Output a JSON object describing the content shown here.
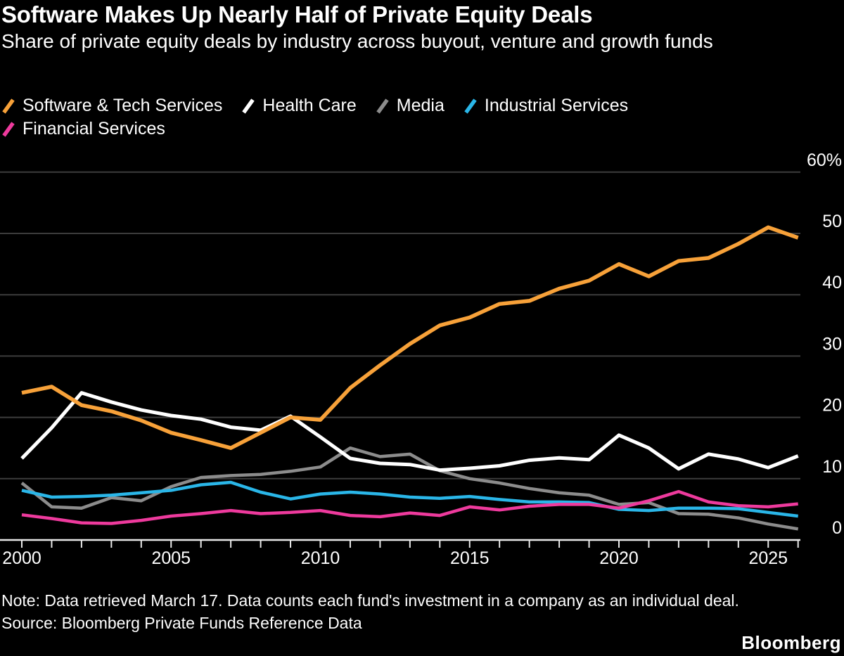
{
  "header": {
    "title": "Software Makes Up Nearly Half of Private Equity Deals",
    "subtitle": "Share of private equity deals by industry across buyout, venture and growth funds"
  },
  "colors": {
    "background": "#000000",
    "text": "#ffffff",
    "gridline": "#3c3c3c",
    "axis": "#e8e8e8",
    "software": "#f7a139",
    "health": "#ffffff",
    "media": "#8c8c8c",
    "industrial": "#2ab6e8",
    "financial": "#ee3a9d"
  },
  "chart_data": {
    "type": "line",
    "unit": "%",
    "x": [
      2000,
      2001,
      2002,
      2003,
      2004,
      2005,
      2006,
      2007,
      2008,
      2009,
      2010,
      2011,
      2012,
      2013,
      2014,
      2015,
      2016,
      2017,
      2018,
      2019,
      2020,
      2021,
      2022,
      2023,
      2024,
      2025,
      2026
    ],
    "series": [
      {
        "name": "Software & Tech Services",
        "color_key": "software",
        "values": [
          24,
          25,
          22,
          21,
          19.5,
          17.5,
          16.3,
          15,
          17.5,
          20,
          19.6,
          24.8,
          28.5,
          32,
          35,
          36.3,
          38.5,
          39,
          41,
          42.3,
          45,
          43,
          45.5,
          46,
          48.3,
          51,
          49.3
        ]
      },
      {
        "name": "Health Care",
        "color_key": "health",
        "values": [
          13.3,
          18.3,
          24,
          22.5,
          21.2,
          20.3,
          19.7,
          18.4,
          17.9,
          20.2,
          16.8,
          13.3,
          12.5,
          12.3,
          11.4,
          11.7,
          12.1,
          13,
          13.4,
          13.1,
          17.1,
          15,
          11.6,
          14,
          13.2,
          11.8,
          13.7
        ]
      },
      {
        "name": "Media",
        "color_key": "media",
        "values": [
          9.3,
          5.4,
          5.2,
          6.9,
          6.4,
          8.7,
          10.2,
          10.5,
          10.7,
          11.2,
          11.9,
          15,
          13.6,
          14,
          11.3,
          10,
          9.3,
          8.4,
          7.7,
          7.3,
          5.8,
          6.1,
          4.3,
          4.2,
          3.6,
          2.6,
          1.8
        ]
      },
      {
        "name": "Industrial Services",
        "color_key": "industrial",
        "values": [
          8.1,
          7,
          7.1,
          7.3,
          7.7,
          8.1,
          9,
          9.4,
          7.8,
          6.7,
          7.5,
          7.8,
          7.5,
          7,
          6.8,
          7.1,
          6.6,
          6.2,
          6.2,
          6.1,
          5,
          4.8,
          5.2,
          5.2,
          5.1,
          4.5,
          3.9
        ]
      },
      {
        "name": "Financial Services",
        "color_key": "financial",
        "values": [
          4.1,
          3.5,
          2.8,
          2.7,
          3.2,
          3.9,
          4.3,
          4.8,
          4.3,
          4.5,
          4.8,
          4,
          3.8,
          4.4,
          4,
          5.4,
          4.9,
          5.5,
          5.8,
          5.8,
          5.2,
          6.4,
          7.9,
          6.2,
          5.6,
          5.4,
          5.9
        ]
      }
    ],
    "ylim": [
      0,
      60
    ],
    "yticks": [
      {
        "v": 60,
        "label": "60%"
      },
      {
        "v": 50,
        "label": "50"
      },
      {
        "v": 40,
        "label": "40"
      },
      {
        "v": 30,
        "label": "30"
      },
      {
        "v": 20,
        "label": "20"
      },
      {
        "v": 10,
        "label": "10"
      },
      {
        "v": 0,
        "label": "0"
      }
    ],
    "xtick_labels": [
      2000,
      2005,
      2010,
      2015,
      2020,
      2025
    ],
    "grid": "horizontal",
    "legend_position": "top-left"
  },
  "footer": {
    "note": "Note: Data retrieved March 17. Data counts each fund's investment in a company as an individual deal.",
    "source": "Source: Bloomberg Private Funds Reference Data",
    "logo": "Bloomberg"
  }
}
